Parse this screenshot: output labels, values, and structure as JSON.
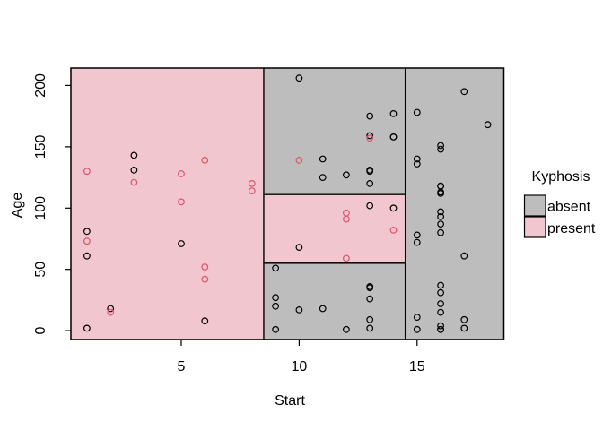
{
  "figure": {
    "background": "#FFFFFF"
  },
  "chart_data": {
    "type": "scatter",
    "title": "",
    "xlabel": "Start",
    "ylabel": "Age",
    "x_ticks": [
      5,
      10,
      15
    ],
    "y_ticks": [
      0,
      50,
      100,
      150,
      200
    ],
    "xlim": [
      0.32,
      18.68
    ],
    "ylim": [
      -7.2,
      214.2
    ],
    "grid": false,
    "legend": {
      "title": "Kyphosis",
      "position": "right-middle",
      "entries": [
        {
          "label": "absent",
          "color": "#BDBDBD"
        },
        {
          "label": "present",
          "color": "#F2C6CF"
        }
      ]
    },
    "colors": {
      "absent_region": "#BDBDBD",
      "present_region": "#F2C6CF",
      "absent_point": "#000000",
      "present_point": "#DF536B",
      "border": "#000000"
    },
    "partition_regions": [
      {
        "predicted": "present",
        "x": [
          0.32,
          8.5
        ],
        "y": [
          -7.2,
          214.2
        ]
      },
      {
        "predicted": "absent",
        "x": [
          8.5,
          14.5
        ],
        "y": [
          111,
          214.2
        ]
      },
      {
        "predicted": "present",
        "x": [
          8.5,
          14.5
        ],
        "y": [
          55,
          111
        ]
      },
      {
        "predicted": "absent",
        "x": [
          8.5,
          14.5
        ],
        "y": [
          -7.2,
          55
        ]
      },
      {
        "predicted": "absent",
        "x": [
          14.5,
          18.68
        ],
        "y": [
          -7.2,
          214.2
        ]
      }
    ],
    "points_format": [
      "start",
      "age",
      "kyphosis"
    ],
    "points": [
      [
        5,
        71,
        "absent"
      ],
      [
        14,
        158,
        "absent"
      ],
      [
        5,
        128,
        "present"
      ],
      [
        1,
        2,
        "absent"
      ],
      [
        15,
        1,
        "absent"
      ],
      [
        16,
        1,
        "absent"
      ],
      [
        17,
        61,
        "absent"
      ],
      [
        16,
        37,
        "absent"
      ],
      [
        16,
        113,
        "absent"
      ],
      [
        12,
        59,
        "present"
      ],
      [
        14,
        82,
        "present"
      ],
      [
        16,
        148,
        "absent"
      ],
      [
        2,
        18,
        "absent"
      ],
      [
        12,
        1,
        "absent"
      ],
      [
        18,
        168,
        "absent"
      ],
      [
        16,
        1,
        "absent"
      ],
      [
        15,
        78,
        "absent"
      ],
      [
        13,
        175,
        "absent"
      ],
      [
        16,
        80,
        "absent"
      ],
      [
        9,
        27,
        "absent"
      ],
      [
        16,
        22,
        "absent"
      ],
      [
        5,
        105,
        "present"
      ],
      [
        12,
        96,
        "present"
      ],
      [
        3,
        131,
        "absent"
      ],
      [
        2,
        15,
        "present"
      ],
      [
        13,
        9,
        "absent"
      ],
      [
        6,
        8,
        "absent"
      ],
      [
        14,
        100,
        "absent"
      ],
      [
        16,
        4,
        "absent"
      ],
      [
        16,
        151,
        "absent"
      ],
      [
        16,
        31,
        "absent"
      ],
      [
        11,
        125,
        "absent"
      ],
      [
        13,
        130,
        "absent"
      ],
      [
        16,
        112,
        "absent"
      ],
      [
        11,
        140,
        "absent"
      ],
      [
        16,
        93,
        "absent"
      ],
      [
        9,
        1,
        "absent"
      ],
      [
        6,
        52,
        "present"
      ],
      [
        9,
        20,
        "absent"
      ],
      [
        12,
        91,
        "present"
      ],
      [
        1,
        73,
        "present"
      ],
      [
        13,
        35,
        "absent"
      ],
      [
        3,
        143,
        "absent"
      ],
      [
        1,
        61,
        "absent"
      ],
      [
        16,
        97,
        "absent"
      ],
      [
        10,
        139,
        "present"
      ],
      [
        15,
        136,
        "absent"
      ],
      [
        13,
        131,
        "absent"
      ],
      [
        3,
        121,
        "present"
      ],
      [
        14,
        177,
        "absent"
      ],
      [
        10,
        68,
        "absent"
      ],
      [
        17,
        9,
        "absent"
      ],
      [
        6,
        139,
        "present"
      ],
      [
        17,
        2,
        "absent"
      ],
      [
        15,
        140,
        "absent"
      ],
      [
        15,
        72,
        "absent"
      ],
      [
        13,
        2,
        "absent"
      ],
      [
        8,
        120,
        "present"
      ],
      [
        9,
        51,
        "absent"
      ],
      [
        13,
        102,
        "absent"
      ],
      [
        1,
        130,
        "present"
      ],
      [
        8,
        114,
        "present"
      ],
      [
        1,
        81,
        "absent"
      ],
      [
        16,
        118,
        "absent"
      ],
      [
        16,
        118,
        "absent"
      ],
      [
        10,
        17,
        "absent"
      ],
      [
        17,
        195,
        "absent"
      ],
      [
        13,
        159,
        "absent"
      ],
      [
        11,
        18,
        "absent"
      ],
      [
        16,
        15,
        "absent"
      ],
      [
        14,
        158,
        "absent"
      ],
      [
        12,
        127,
        "absent"
      ],
      [
        16,
        87,
        "absent"
      ],
      [
        10,
        206,
        "absent"
      ],
      [
        15,
        11,
        "absent"
      ],
      [
        15,
        178,
        "absent"
      ],
      [
        13,
        157,
        "present"
      ],
      [
        13,
        26,
        "absent"
      ],
      [
        13,
        120,
        "absent"
      ],
      [
        6,
        42,
        "present"
      ],
      [
        13,
        36,
        "absent"
      ]
    ]
  }
}
